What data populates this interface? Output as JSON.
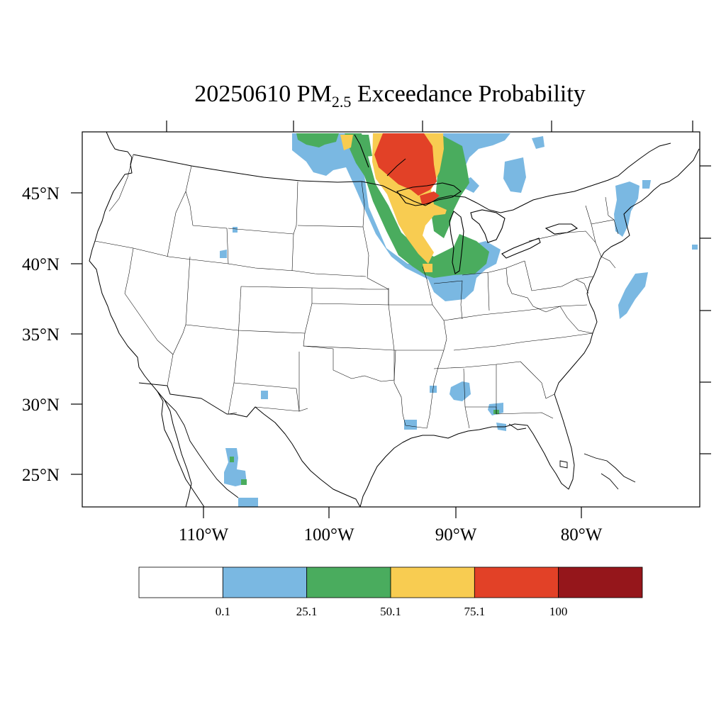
{
  "title": {
    "date": "20250610",
    "species": "PM",
    "subscript": "2.5",
    "suffix": "Exceedance Probability"
  },
  "map": {
    "projection": "Lambert Conformal Conic",
    "region": "Contiguous United States",
    "lon_labels": [
      "110°W",
      "100°W",
      "90°W",
      "80°W"
    ],
    "lat_labels": [
      "45°N",
      "40°N",
      "35°N",
      "30°N",
      "25°N"
    ],
    "boundaries": [
      "coastlines",
      "state borders",
      "great lakes"
    ]
  },
  "colorbar": {
    "colors": [
      "#ffffff",
      "#7ab8e2",
      "#4aac5e",
      "#f8cc51",
      "#e24127",
      "#95161b"
    ],
    "labels": [
      "0.1",
      "25.1",
      "50.1",
      "75.1",
      "100"
    ]
  },
  "regions": [
    {
      "area": "northern Minnesota / Lake Superior",
      "class": "red"
    },
    {
      "area": "upper Mississippi valley",
      "class": "yellow"
    },
    {
      "area": "Wisconsin, Illinois, Lake Michigan",
      "class": "green"
    },
    {
      "area": "Great Lakes periphery and Dakotas",
      "class": "blue"
    },
    {
      "area": "New England and Mid-Atlantic coast",
      "class": "blue"
    },
    {
      "area": "Gulf coast and Southeast",
      "class": "blue"
    },
    {
      "area": "northern Mexico",
      "class": "green"
    }
  ]
}
